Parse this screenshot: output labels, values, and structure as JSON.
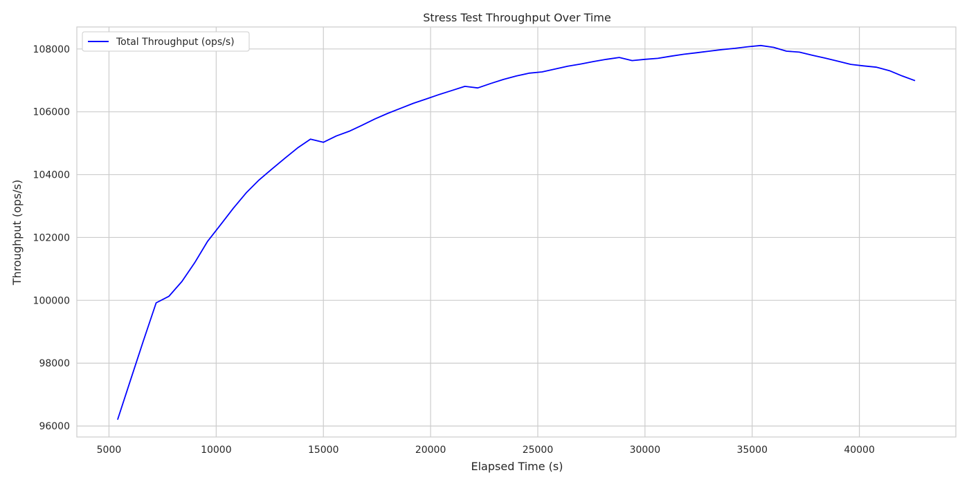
{
  "chart_data": {
    "type": "line",
    "title": "Stress Test Throughput Over Time",
    "xlabel": "Elapsed Time (s)",
    "ylabel": "Throughput (ops/s)",
    "xlim": [
      3500,
      44500
    ],
    "ylim": [
      95650,
      108700
    ],
    "xticks": [
      5000,
      10000,
      15000,
      20000,
      25000,
      30000,
      35000,
      40000
    ],
    "yticks": [
      96000,
      98000,
      100000,
      102000,
      104000,
      106000,
      108000
    ],
    "grid": true,
    "legend_position": "top-left",
    "series": [
      {
        "name": "Total Throughput (ops/s)",
        "color": "#0000ff",
        "x": [
          5400,
          6000,
          6600,
          7200,
          7800,
          8400,
          9000,
          9600,
          10200,
          10800,
          11400,
          12000,
          12600,
          13200,
          13800,
          14400,
          15000,
          15600,
          16200,
          16800,
          17400,
          18000,
          18600,
          19200,
          19800,
          20400,
          21000,
          21600,
          22200,
          22800,
          23400,
          24000,
          24600,
          25200,
          25800,
          26400,
          27000,
          27600,
          28200,
          28800,
          29400,
          30000,
          30600,
          31200,
          31800,
          32400,
          33000,
          33600,
          34200,
          34800,
          35400,
          36000,
          36600,
          37200,
          37800,
          38400,
          39000,
          39600,
          40200,
          40800,
          41400,
          42000,
          42600
        ],
        "y": [
          96200,
          97450,
          98700,
          99920,
          100130,
          100600,
          101200,
          101880,
          102400,
          102930,
          103420,
          103830,
          104180,
          104520,
          104850,
          105130,
          105030,
          105230,
          105380,
          105570,
          105770,
          105950,
          106110,
          106270,
          106410,
          106550,
          106680,
          106810,
          106760,
          106900,
          107030,
          107140,
          107230,
          107270,
          107360,
          107450,
          107520,
          107600,
          107670,
          107730,
          107630,
          107670,
          107700,
          107770,
          107830,
          107880,
          107930,
          107980,
          108020,
          108070,
          108110,
          108050,
          107930,
          107900,
          107800,
          107710,
          107610,
          107510,
          107460,
          107420,
          107310,
          107140,
          106990
        ]
      }
    ]
  }
}
